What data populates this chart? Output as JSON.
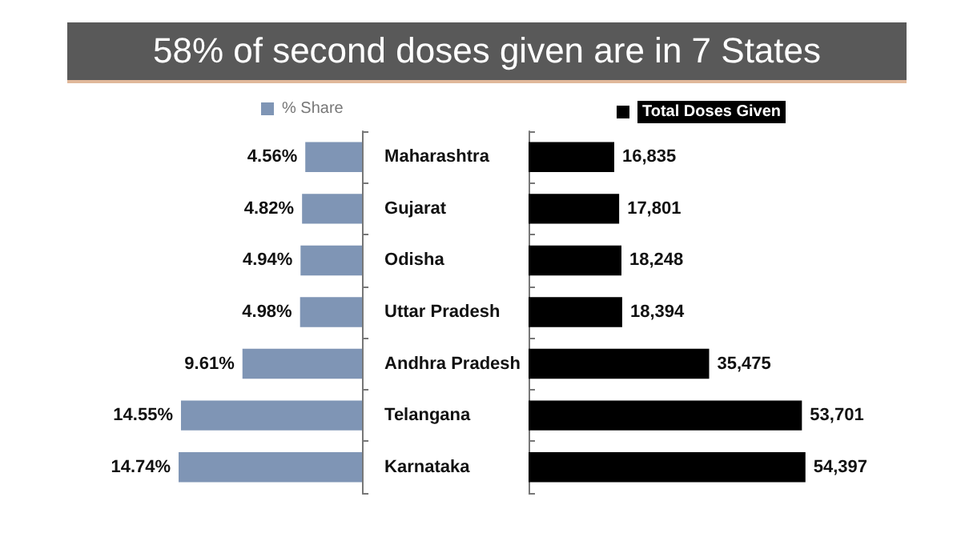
{
  "chart_data": [
    {
      "type": "bar",
      "orientation": "horizontal",
      "title": "58% of second doses given are in 7 States",
      "categories": [
        "Maharashtra",
        "Gujarat",
        "Odisha",
        "Uttar Pradesh",
        "Andhra Pradesh",
        "Telangana",
        "Karnataka"
      ],
      "series": [
        {
          "name": "% Share",
          "color": "#7f95b5",
          "values": [
            4.56,
            4.82,
            4.94,
            4.98,
            9.61,
            14.55,
            14.74
          ],
          "value_labels": [
            "4.56%",
            "4.82%",
            "4.94%",
            "4.98%",
            "9.61%",
            "14.55%",
            "14.74%"
          ]
        }
      ],
      "legend": "top",
      "tick_labels": "y",
      "grid": false
    },
    {
      "type": "bar",
      "orientation": "horizontal",
      "categories": [
        null,
        null,
        null,
        null,
        null,
        null,
        null
      ],
      "series": [
        {
          "name": "Total Doses Given",
          "color": "#000000",
          "values": [
            16835,
            17801,
            18248,
            18394,
            35475,
            53701,
            54397
          ],
          "value_labels": [
            "16,835",
            "17,801",
            "18,248",
            "18,394",
            "35,475",
            "53,701",
            "54,397"
          ]
        }
      ],
      "legend": "top",
      "tick_labels": false,
      "grid": false
    }
  ]
}
